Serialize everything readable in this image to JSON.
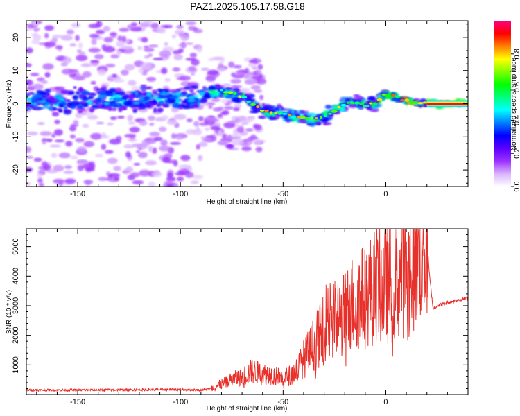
{
  "title": "PAZ1.2025.105.17.58.G18",
  "chart_data": [
    {
      "type": "heatmap",
      "xlabel": "Height of straight line (km)",
      "ylabel": "Frequency (Hz)",
      "xlim": [
        -175,
        40
      ],
      "ylim": [
        -25,
        25
      ],
      "xticks": [
        -150,
        -100,
        -50,
        0
      ],
      "yticks": [
        -20,
        -10,
        0,
        10,
        20
      ],
      "colorbar": {
        "label": "Normalized spectral amplitude",
        "range": [
          0,
          1
        ],
        "ticks": [
          "0.0",
          "0.2",
          "0.4",
          "0.6",
          "0.8"
        ],
        "tick_values": [
          0,
          0.2,
          0.4,
          0.6,
          0.8
        ],
        "colors": [
          "#ffffff",
          "#d9b3ff",
          "#9b30ff",
          "#5a00ff",
          "#0000ff",
          "#0080ff",
          "#00ffff",
          "#00ff80",
          "#00ff00",
          "#80ff00",
          "#ffff00",
          "#ff8000",
          "#ff0000",
          "#ff0080"
        ]
      },
      "ridge": {
        "x": [
          -175,
          -150,
          -120,
          -100,
          -90,
          -82,
          -75,
          -70,
          -65,
          -60,
          -55,
          -50,
          -45,
          -40,
          -35,
          -30,
          -25,
          -20,
          -15,
          -10,
          -5,
          0,
          5,
          10,
          15,
          20,
          25,
          30,
          40
        ],
        "y": [
          0.5,
          1,
          1.5,
          1.5,
          2,
          4,
          3,
          2,
          0,
          -2,
          -3,
          -3,
          -4,
          -4,
          -5,
          -4,
          -2,
          0,
          0.5,
          -0.5,
          0,
          3,
          2,
          1,
          0,
          0,
          0,
          0,
          0
        ]
      }
    },
    {
      "type": "line",
      "xlabel": "Height of straight line (km)",
      "ylabel": "SNR (10 * v/v)",
      "xlim": [
        -175,
        40
      ],
      "ylim": [
        0,
        5600
      ],
      "xticks": [
        -150,
        -100,
        -50,
        0
      ],
      "yticks": [
        1000,
        2000,
        3000,
        4000,
        5000
      ],
      "color": "#e8302a",
      "series": [
        {
          "x": [
            -175,
            -150,
            -120,
            -100,
            -90,
            -85,
            -80,
            -75,
            -70,
            -65,
            -60,
            -55,
            -50,
            -45,
            -40,
            -35,
            -30,
            -27,
            -25,
            -20,
            -15,
            -10,
            -5,
            0,
            5,
            10,
            15,
            19,
            20,
            21,
            23,
            25,
            30,
            35,
            40
          ],
          "y": [
            150,
            150,
            160,
            170,
            150,
            200,
            350,
            500,
            600,
            800,
            700,
            650,
            550,
            700,
            1200,
            1700,
            2200,
            3200,
            2500,
            2700,
            3200,
            3300,
            3700,
            3700,
            3800,
            4300,
            4900,
            5400,
            5600,
            4200,
            2900,
            3000,
            3100,
            3200,
            3250
          ]
        }
      ]
    }
  ]
}
